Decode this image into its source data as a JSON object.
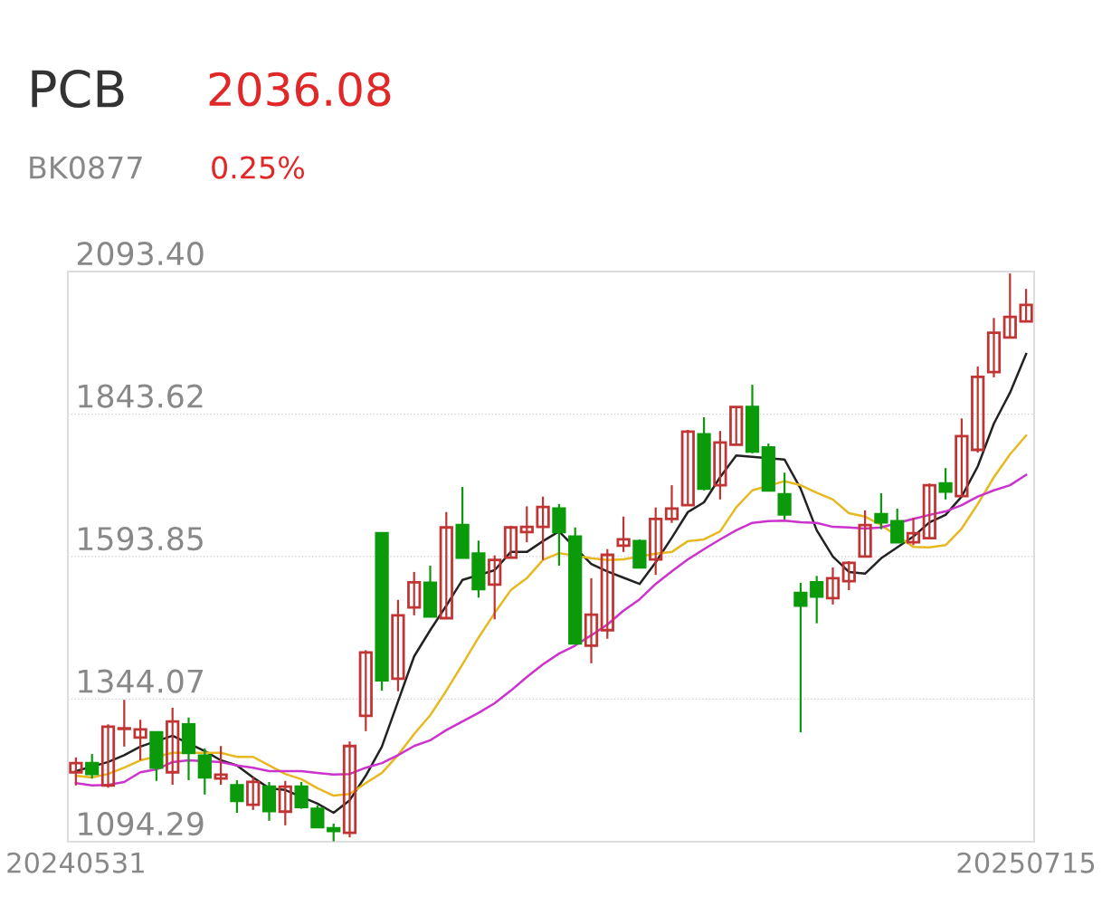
{
  "chart_data": {
    "type": "candlestick",
    "title": "PCB",
    "subtitle": "BK0877",
    "annotations": [
      "2036.08",
      "0.25%"
    ],
    "categories": [
      "20240531",
      null,
      null,
      null,
      null,
      null,
      null,
      null,
      null,
      null,
      null,
      null,
      null,
      null,
      null,
      null,
      null,
      null,
      null,
      null,
      null,
      null,
      null,
      null,
      null,
      null,
      null,
      null,
      null,
      null,
      null,
      null,
      null,
      null,
      null,
      null,
      null,
      null,
      null,
      null,
      null,
      null,
      null,
      null,
      null,
      null,
      null,
      null,
      null,
      null,
      null,
      null,
      null,
      null,
      null,
      null,
      null,
      null,
      null,
      "20250715"
    ],
    "ohlc": [
      [
        1216,
        1242,
        1193,
        1232
      ],
      [
        1232,
        1248,
        1205,
        1213
      ],
      [
        1193,
        1300,
        1189,
        1296
      ],
      [
        1292,
        1343,
        1261,
        1293
      ],
      [
        1277,
        1308,
        1237,
        1291
      ],
      [
        1286,
        1286,
        1201,
        1224
      ],
      [
        1216,
        1329,
        1194,
        1305
      ],
      [
        1300,
        1312,
        1202,
        1250
      ],
      [
        1245,
        1258,
        1177,
        1207
      ],
      [
        1205,
        1262,
        1194,
        1212
      ],
      [
        1193,
        1202,
        1145,
        1166
      ],
      [
        1159,
        1207,
        1150,
        1199
      ],
      [
        1191,
        1199,
        1131,
        1148
      ],
      [
        1147,
        1201,
        1123,
        1191
      ],
      [
        1191,
        1199,
        1152,
        1155
      ],
      [
        1152,
        1158,
        1118,
        1120
      ],
      [
        1118,
        1126,
        1095,
        1113
      ],
      [
        1110,
        1270,
        1102,
        1262
      ],
      [
        1315,
        1430,
        1288,
        1426
      ],
      [
        1635,
        1635,
        1359,
        1377
      ],
      [
        1380,
        1518,
        1358,
        1491
      ],
      [
        1505,
        1567,
        1491,
        1549
      ],
      [
        1548,
        1578,
        1488,
        1489
      ],
      [
        1486,
        1672,
        1486,
        1645
      ],
      [
        1649,
        1716,
        1592,
        1592
      ],
      [
        1599,
        1622,
        1522,
        1537
      ],
      [
        1545,
        1596,
        1484,
        1588
      ],
      [
        1592,
        1648,
        1592,
        1645
      ],
      [
        1637,
        1682,
        1619,
        1646
      ],
      [
        1646,
        1699,
        1588,
        1681
      ],
      [
        1678,
        1686,
        1578,
        1637
      ],
      [
        1629,
        1645,
        1442,
        1442
      ],
      [
        1438,
        1556,
        1407,
        1492
      ],
      [
        1465,
        1607,
        1450,
        1597
      ],
      [
        1613,
        1664,
        1602,
        1624
      ],
      [
        1621,
        1624,
        1575,
        1575
      ],
      [
        1589,
        1680,
        1562,
        1660
      ],
      [
        1660,
        1719,
        1653,
        1678
      ],
      [
        1684,
        1816,
        1684,
        1813
      ],
      [
        1808,
        1838,
        1710,
        1713
      ],
      [
        1719,
        1814,
        1694,
        1794
      ],
      [
        1790,
        1857,
        1790,
        1856
      ],
      [
        1856,
        1895,
        1775,
        1778
      ],
      [
        1785,
        1792,
        1710,
        1710
      ],
      [
        1703,
        1741,
        1659,
        1668
      ],
      [
        1530,
        1548,
        1286,
        1508
      ],
      [
        1549,
        1560,
        1477,
        1524
      ],
      [
        1521,
        1575,
        1510,
        1556
      ],
      [
        1551,
        1586,
        1535,
        1583
      ],
      [
        1594,
        1675,
        1594,
        1649
      ],
      [
        1668,
        1705,
        1642,
        1654
      ],
      [
        1656,
        1678,
        1619,
        1619
      ],
      [
        1619,
        1662,
        1614,
        1635
      ],
      [
        1626,
        1722,
        1626,
        1719
      ],
      [
        1722,
        1749,
        1694,
        1708
      ],
      [
        1700,
        1836,
        1700,
        1805
      ],
      [
        1781,
        1927,
        1776,
        1909
      ],
      [
        1917,
        2012,
        1908,
        1986
      ],
      [
        1978,
        2090,
        1978,
        2014
      ],
      [
        2006,
        2063,
        2006,
        2035
      ]
    ],
    "colors": [
      "#c03434",
      "#0a9a0a",
      "#c03434",
      "#c03434",
      "#c03434",
      "#0a9a0a",
      "#c03434",
      "#0a9a0a",
      "#0a9a0a",
      "#c03434",
      "#0a9a0a",
      "#c03434",
      "#0a9a0a",
      "#c03434",
      "#0a9a0a",
      "#0a9a0a",
      "#0a9a0a",
      "#c03434",
      "#c03434",
      "#0a9a0a",
      "#c03434",
      "#c03434",
      "#0a9a0a",
      "#c03434",
      "#0a9a0a",
      "#0a9a0a",
      "#c03434",
      "#c03434",
      "#c03434",
      "#c03434",
      "#0a9a0a",
      "#0a9a0a",
      "#c03434",
      "#c03434",
      "#c03434",
      "#0a9a0a",
      "#c03434",
      "#c03434",
      "#c03434",
      "#0a9a0a",
      "#c03434",
      "#c03434",
      "#0a9a0a",
      "#0a9a0a",
      "#0a9a0a",
      "#0a9a0a",
      "#0a9a0a",
      "#c03434",
      "#c03434",
      "#c03434",
      "#0a9a0a",
      "#0a9a0a",
      "#c03434",
      "#c03434",
      "#0a9a0a",
      "#c03434",
      "#c03434",
      "#c03434",
      "#c03434",
      "#c03434"
    ],
    "series": [
      {
        "type": "line",
        "color": "#222222",
        "values": [
          1218,
          null,
          1234,
          1246,
          1261,
          null,
          1280,
          null,
          1253,
          1237,
          1228,
          1207,
          1188,
          1185,
          null,
          1161,
          1145,
          1167,
          1210,
          1261,
          1340,
          1419,
          1465,
          1508,
          1553,
          null,
          1570,
          1602,
          1602,
          1621,
          1638,
          null,
          1581,
          1568,
          1557,
          1546,
          1584,
          1627,
          1672,
          1689,
          1733,
          1771,
          null,
          null,
          1764,
          1713,
          1640,
          1594,
          1567,
          1564,
          1591,
          1610,
          1629,
          1654,
          1667,
          1699,
          1752,
          1827,
          1881,
          1949
        ]
      },
      {
        "type": "line",
        "color": "#e8b820",
        "values": [
          1210,
          1207,
          1213,
          1224,
          1237,
          null,
          1250,
          null,
          1250,
          1250,
          1243,
          1243,
          1228,
          1213,
          1204,
          1188,
          1175,
          1178,
          1197,
          1215,
          1246,
          1283,
          1316,
          1359,
          1405,
          1452,
          1495,
          1535,
          1556,
          1588,
          1600,
          null,
          1591,
          1588,
          1589,
          null,
          1599,
          1602,
          1621,
          1624,
          1638,
          1680,
          1710,
          null,
          1726,
          1719,
          1706,
          1694,
          1670,
          1664,
          1649,
          null,
          1611,
          1610,
          1614,
          1643,
          1686,
          1733,
          1773,
          1806
        ]
      },
      {
        "type": "line",
        "color": "#cc33cc",
        "values": [
          1197,
          1193,
          1194,
          1199,
          1216,
          1221,
          1234,
          1237,
          null,
          1234,
          1228,
          1224,
          1218,
          1218,
          1218,
          1215,
          1212,
          1213,
          1224,
          1232,
          1246,
          1262,
          1272,
          1290,
          1305,
          1320,
          1337,
          1359,
          1383,
          1405,
          1424,
          1438,
          1456,
          1475,
          1499,
          1519,
          1546,
          1568,
          1589,
          1607,
          1624,
          1640,
          1653,
          1656,
          1657,
          1654,
          1653,
          1646,
          1645,
          1643,
          1645,
          null,
          1660,
          1667,
          1673,
          1684,
          1699,
          1710,
          1719,
          1737
        ]
      }
    ],
    "ylim": [
      1094.29,
      2093.4
    ],
    "yticks": [
      {
        "value": 1094.29,
        "label": "1094.29"
      },
      {
        "value": 1344.07,
        "label": "1344.07"
      },
      {
        "value": 1593.85,
        "label": "1593.85"
      },
      {
        "value": 1843.62,
        "label": "1843.62"
      },
      {
        "value": 2093.4,
        "label": "2093.40"
      }
    ],
    "grid": "y"
  }
}
